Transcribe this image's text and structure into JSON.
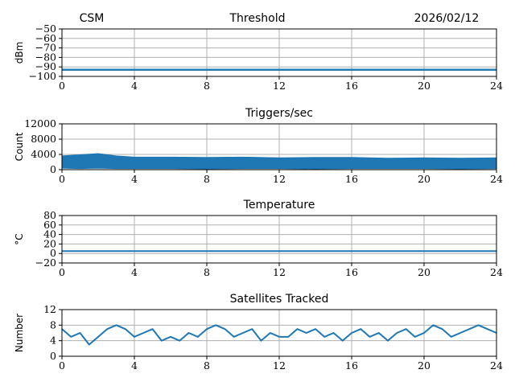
{
  "header": {
    "left": "CSM",
    "center": "Threshold",
    "right": "2026/02/12"
  },
  "series_color": "#1f77b4",
  "chart_data": [
    {
      "type": "line",
      "title": "Threshold",
      "ylabel": "dBm",
      "xlabel": "",
      "xlim": [
        0,
        24
      ],
      "ylim": [
        -100,
        -50
      ],
      "xticks": [
        0,
        4,
        8,
        12,
        16,
        20,
        24
      ],
      "yticks": [
        -100,
        -90,
        -80,
        -70,
        -60,
        -50
      ],
      "yticklabels": [
        "−100",
        "−90",
        "−80",
        "−70",
        "−60",
        "−50"
      ],
      "grid": true,
      "series": [
        {
          "x": [
            0,
            24
          ],
          "y": [
            -93,
            -93
          ],
          "band": [
            -94,
            -92
          ]
        }
      ]
    },
    {
      "type": "line",
      "title": "Triggers/sec",
      "ylabel": "Count",
      "xlabel": "",
      "xlim": [
        0,
        24
      ],
      "ylim": [
        0,
        12000
      ],
      "xticks": [
        0,
        4,
        8,
        12,
        16,
        20,
        24
      ],
      "yticks": [
        0,
        4000,
        8000,
        12000
      ],
      "yticklabels": [
        "0",
        "4000",
        "8000",
        "12000"
      ],
      "grid": true,
      "series": [
        {
          "x": [
            0,
            1,
            2,
            3,
            4,
            6,
            8,
            10,
            12,
            14,
            16,
            18,
            20,
            22,
            24
          ],
          "upper": [
            3600,
            3900,
            4200,
            3600,
            3300,
            3300,
            3200,
            3300,
            3100,
            3200,
            3200,
            3000,
            3100,
            3000,
            3100
          ],
          "lower": [
            400,
            300,
            400,
            300,
            300,
            300,
            200,
            300,
            300,
            200,
            300,
            300,
            300,
            200,
            300
          ]
        }
      ]
    },
    {
      "type": "line",
      "title": "Temperature",
      "ylabel": "°C",
      "xlabel": "",
      "xlim": [
        0,
        24
      ],
      "ylim": [
        -20,
        80
      ],
      "xticks": [
        0,
        4,
        8,
        12,
        16,
        20,
        24
      ],
      "yticks": [
        -20,
        0,
        20,
        40,
        60,
        80
      ],
      "yticklabels": [
        "−20",
        "0",
        "20",
        "40",
        "60",
        "80"
      ],
      "grid": true,
      "series": [
        {
          "x": [
            0,
            24
          ],
          "y": [
            5,
            5
          ]
        }
      ]
    },
    {
      "type": "line",
      "title": "Satellites Tracked",
      "ylabel": "Number",
      "xlabel": "",
      "xlim": [
        0,
        24
      ],
      "ylim": [
        0,
        12
      ],
      "xticks": [
        0,
        4,
        8,
        12,
        16,
        20,
        24
      ],
      "yticks": [
        0,
        4,
        8,
        12
      ],
      "yticklabels": [
        "0",
        "4",
        "8",
        "12"
      ],
      "grid": true,
      "series": [
        {
          "x": [
            0,
            0.5,
            1,
            1.5,
            2,
            2.5,
            3,
            3.5,
            4,
            4.5,
            5,
            5.5,
            6,
            6.5,
            7,
            7.5,
            8,
            8.5,
            9,
            9.5,
            10,
            10.5,
            11,
            11.5,
            12,
            12.5,
            13,
            13.5,
            14,
            14.5,
            15,
            15.5,
            16,
            16.5,
            17,
            17.5,
            18,
            18.5,
            19,
            19.5,
            20,
            20.5,
            21,
            21.5,
            22,
            22.5,
            23,
            23.5,
            24
          ],
          "y": [
            7,
            5,
            6,
            3,
            5,
            7,
            8,
            7,
            5,
            6,
            7,
            4,
            5,
            4,
            6,
            5,
            7,
            8,
            7,
            5,
            6,
            7,
            4,
            6,
            5,
            5,
            7,
            6,
            7,
            5,
            6,
            4,
            6,
            7,
            5,
            6,
            4,
            6,
            7,
            5,
            6,
            8,
            7,
            5,
            6,
            7,
            8,
            7,
            6
          ]
        }
      ]
    }
  ]
}
